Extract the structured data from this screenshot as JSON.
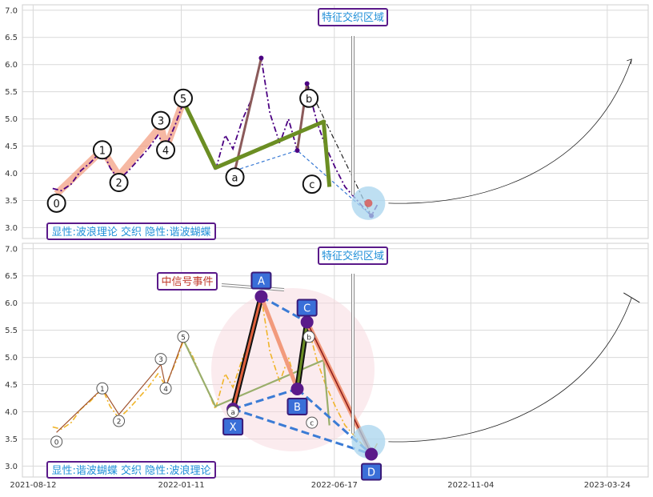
{
  "chart_data": [
    {
      "type": "line",
      "panel": "top",
      "title": "",
      "xlabel": "",
      "ylabel": "",
      "ylim": [
        2.8,
        7.1
      ],
      "y_ticks": [
        "3.0",
        "3.5",
        "4.0",
        "4.5",
        "5.0",
        "5.5",
        "6.0",
        "6.5",
        "7.0"
      ],
      "grid": true,
      "header_label": "特征交织区域",
      "footer_label": "显性:波浪理论 交织 隐性:谐波蝴蝶",
      "wave_labels": [
        {
          "label": "0",
          "date": "2021-09-05",
          "y": 3.45
        },
        {
          "label": "1",
          "date": "2021-10-22",
          "y": 4.43
        },
        {
          "label": "2",
          "date": "2021-11-08",
          "y": 3.83
        },
        {
          "label": "3",
          "date": "2021-12-21",
          "y": 4.97
        },
        {
          "label": "4",
          "date": "2021-12-26",
          "y": 4.43
        },
        {
          "label": "5",
          "date": "2022-01-13",
          "y": 5.38
        },
        {
          "label": "a",
          "date": "2022-03-07",
          "y": 3.93
        },
        {
          "label": "b",
          "date": "2022-05-22",
          "y": 5.38
        },
        {
          "label": "c",
          "date": "2022-05-25",
          "y": 3.8
        }
      ],
      "impulse_path": [
        {
          "date": "2021-09-05",
          "y": 3.62
        },
        {
          "date": "2021-10-22",
          "y": 4.43
        },
        {
          "date": "2021-11-08",
          "y": 3.95
        },
        {
          "date": "2021-12-21",
          "y": 4.87
        },
        {
          "date": "2021-12-26",
          "y": 4.45
        },
        {
          "date": "2022-01-13",
          "y": 5.33
        }
      ],
      "correction_path": [
        {
          "date": "2022-01-13",
          "y": 5.33
        },
        {
          "date": "2022-02-15",
          "y": 4.1
        },
        {
          "date": "2022-06-06",
          "y": 4.95
        },
        {
          "date": "2022-06-12",
          "y": 3.75
        }
      ],
      "price_series": [
        {
          "date": "2021-09-01",
          "y": 3.72
        },
        {
          "date": "2021-09-10",
          "y": 3.68
        },
        {
          "date": "2021-09-20",
          "y": 3.8
        },
        {
          "date": "2021-09-30",
          "y": 4.05
        },
        {
          "date": "2021-10-10",
          "y": 4.2
        },
        {
          "date": "2021-10-22",
          "y": 4.43
        },
        {
          "date": "2021-10-30",
          "y": 4.1
        },
        {
          "date": "2021-11-08",
          "y": 3.88
        },
        {
          "date": "2021-11-18",
          "y": 4.05
        },
        {
          "date": "2021-11-28",
          "y": 4.25
        },
        {
          "date": "2021-12-08",
          "y": 4.45
        },
        {
          "date": "2021-12-18",
          "y": 4.7
        },
        {
          "date": "2021-12-26",
          "y": 4.48
        },
        {
          "date": "2022-01-05",
          "y": 4.9
        },
        {
          "date": "2022-01-13",
          "y": 5.3
        },
        {
          "date": "2022-01-22",
          "y": 5.05
        },
        {
          "date": "2022-01-30",
          "y": 4.7
        },
        {
          "date": "2022-02-08",
          "y": 4.35
        },
        {
          "date": "2022-02-15",
          "y": 4.05
        },
        {
          "date": "2022-02-25",
          "y": 4.7
        },
        {
          "date": "2022-03-05",
          "y": 4.45
        },
        {
          "date": "2022-03-15",
          "y": 5.0
        },
        {
          "date": "2022-03-25",
          "y": 5.4
        },
        {
          "date": "2022-04-03",
          "y": 6.12
        },
        {
          "date": "2022-04-12",
          "y": 5.1
        },
        {
          "date": "2022-04-22",
          "y": 4.55
        },
        {
          "date": "2022-05-01",
          "y": 5.0
        },
        {
          "date": "2022-05-10",
          "y": 4.42
        },
        {
          "date": "2022-05-20",
          "y": 5.65
        },
        {
          "date": "2022-05-30",
          "y": 4.95
        },
        {
          "date": "2022-06-08",
          "y": 4.5
        },
        {
          "date": "2022-06-18",
          "y": 4.1
        },
        {
          "date": "2022-06-28",
          "y": 3.75
        },
        {
          "date": "2022-07-08",
          "y": 3.55
        },
        {
          "date": "2022-07-18",
          "y": 3.35
        },
        {
          "date": "2022-07-25",
          "y": 3.22
        },
        {
          "date": "2022-08-01",
          "y": 3.45
        }
      ],
      "harmonic_points": [
        {
          "date": "2022-03-07",
          "y": 4.05
        },
        {
          "date": "2022-04-03",
          "y": 6.12
        },
        {
          "date": "2022-05-10",
          "y": 4.42
        },
        {
          "date": "2022-05-20",
          "y": 5.65
        },
        {
          "date": "2022-07-25",
          "y": 3.22
        }
      ],
      "focus_point": {
        "date": "2022-07-22",
        "y": 3.45
      },
      "projection_end": {
        "date": "2023-04-18",
        "y": 6.1
      }
    },
    {
      "type": "line",
      "panel": "bottom",
      "title": "",
      "xlabel": "",
      "ylabel": "",
      "ylim": [
        2.8,
        7.1
      ],
      "y_ticks": [
        "3.0",
        "3.5",
        "4.0",
        "4.5",
        "5.0",
        "5.5",
        "6.0",
        "6.5",
        "7.0"
      ],
      "x_ticks": [
        "2021-08-12",
        "2022-01-11",
        "2022-06-17",
        "2022-11-04",
        "2023-03-24"
      ],
      "grid": true,
      "header_label": "特征交织区域",
      "signal_label": "中信号事件",
      "footer_label": "显性:谐波蝴蝶 交织 隐性:波浪理论",
      "harmonic_labels": [
        {
          "label": "X",
          "date": "2022-03-05",
          "y": 4.05
        },
        {
          "label": "A",
          "date": "2022-04-03",
          "y": 6.12
        },
        {
          "label": "B",
          "date": "2022-05-10",
          "y": 4.42
        },
        {
          "label": "C",
          "date": "2022-05-20",
          "y": 5.65
        },
        {
          "label": "D",
          "date": "2022-07-25",
          "y": 3.22
        }
      ],
      "wave_labels": [
        {
          "label": "0",
          "date": "2021-09-05",
          "y": 3.45
        },
        {
          "label": "1",
          "date": "2021-10-22",
          "y": 4.43
        },
        {
          "label": "2",
          "date": "2021-11-08",
          "y": 3.83
        },
        {
          "label": "3",
          "date": "2021-12-21",
          "y": 4.97
        },
        {
          "label": "4",
          "date": "2021-12-26",
          "y": 4.43
        },
        {
          "label": "5",
          "date": "2022-01-13",
          "y": 5.38
        },
        {
          "label": "a",
          "date": "2022-03-05",
          "y": 4.0
        },
        {
          "label": "b",
          "date": "2022-05-22",
          "y": 5.38
        },
        {
          "label": "c",
          "date": "2022-05-25",
          "y": 3.8
        }
      ]
    }
  ],
  "colors": {
    "price_dark": "#4b0082",
    "price_light": "#f0b429",
    "wave_fill": "#f29a7c",
    "correction_green": "#6b8e23",
    "harmonic_blue": "#3a7bd5",
    "label_fill": "#3a6fd8",
    "label_border": "#3a1a78",
    "accent_purple": "#5a1a8a",
    "focus_circle": "#a8d4ee",
    "pink_zone": "#f7d7de"
  }
}
